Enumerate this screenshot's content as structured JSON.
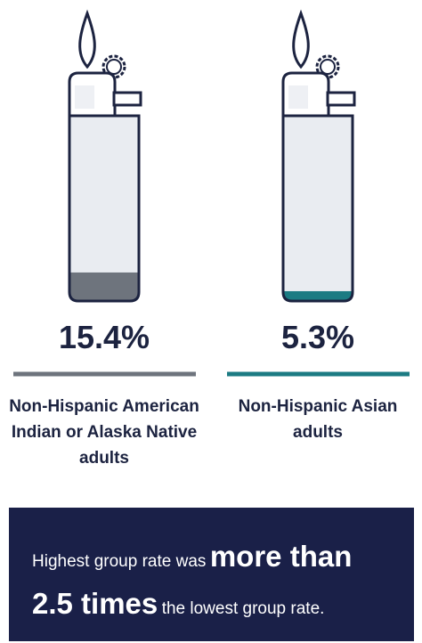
{
  "chart_data": {
    "type": "pictogram",
    "categories": [
      "Non-Hispanic American Indian or Alaska Native adults",
      "Non-Hispanic Asian adults"
    ],
    "values": [
      15.4,
      5.3
    ],
    "value_labels": [
      "15.4%",
      "5.3%"
    ],
    "colors": [
      "#6e747d",
      "#1c7b83"
    ],
    "ylim": [
      0,
      100
    ],
    "callout": {
      "line1_regular": "Highest group rate was",
      "line1_bold": "more than",
      "line2_bold": "2.5 times",
      "line2_regular": "the lowest group rate."
    }
  }
}
